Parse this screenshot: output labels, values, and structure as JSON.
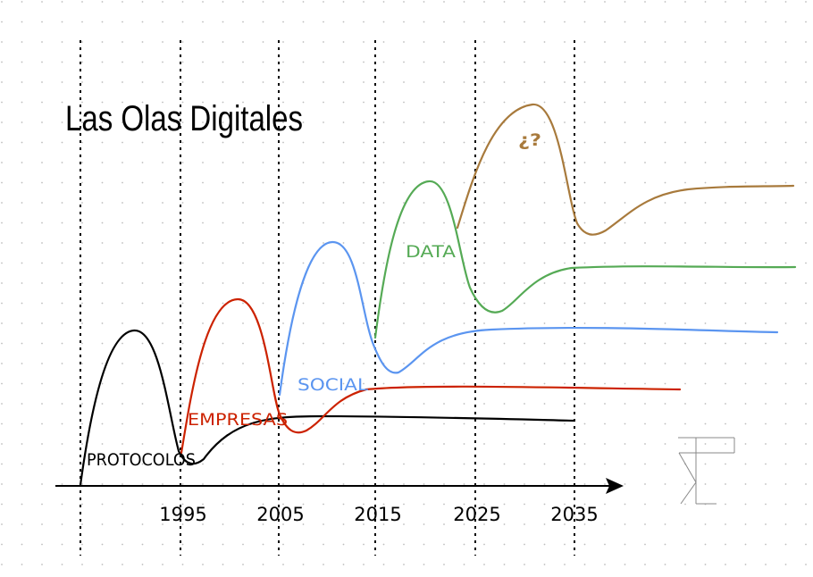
{
  "title": "Las Olas Digitales",
  "years": [
    "1995",
    "2005",
    "2015",
    "2025",
    "2035"
  ],
  "waves": [
    {
      "key": "protocolos",
      "label": "PROTOCOLOS",
      "color": "#000000"
    },
    {
      "key": "empresas",
      "label": "EMPRESAS",
      "color": "#cc2200"
    },
    {
      "key": "social",
      "label": "SOCIAL",
      "color": "#5b95f0"
    },
    {
      "key": "data",
      "label": "DATA",
      "color": "#55aa55"
    },
    {
      "key": "unknown",
      "label": "¿?",
      "color": "#a87a3c"
    }
  ],
  "logo": "logo-mark"
}
